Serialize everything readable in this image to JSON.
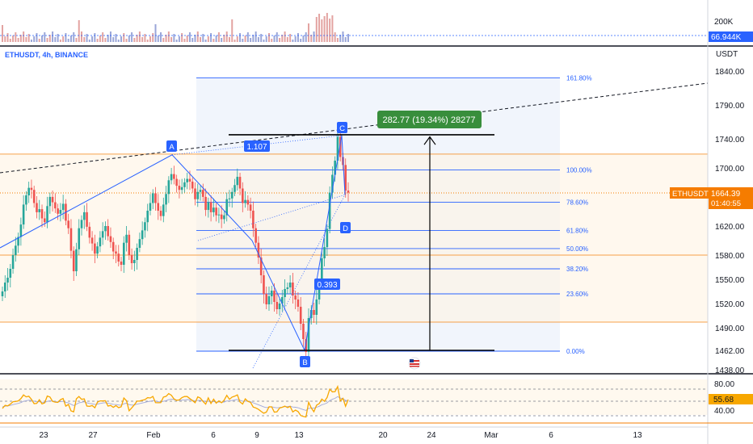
{
  "symbol_label": "ETHUSDT, 4h, BINANCE",
  "currency": "USDT",
  "ticker": "ETHUSDT",
  "last_price": "1664.39",
  "countdown": "01:40:55",
  "volume_axis": {
    "labels": [
      "200K"
    ],
    "last_volume": "66.944K"
  },
  "rsi": {
    "labels": [
      "80.00",
      "40.00"
    ],
    "last_value": "55.68",
    "upper_band": 70,
    "lower_band": 30
  },
  "measure_label": "282.77 (19.34%) 28277",
  "ratio_labels": {
    "xab": "1.107",
    "abc": "0.393"
  },
  "points": {
    "A": "A",
    "B": "B",
    "C": "C",
    "D": "D"
  },
  "colors": {
    "up": "#26a69a",
    "down": "#ef5350",
    "accent": "#2962ff",
    "price_line": "#f57c00",
    "rsi_line": "#f7a700",
    "measure_bg": "#388e3c"
  },
  "chart_data": {
    "type": "candlestick",
    "price_axis": [
      1840,
      1790,
      1740,
      1700,
      1660,
      1620,
      1580,
      1550,
      1520,
      1490,
      1462,
      1438
    ],
    "x_ticks": [
      "23",
      "27",
      "Feb",
      "6",
      "9",
      "13",
      "20",
      "24",
      "Mar",
      "6",
      "13"
    ],
    "fib_levels": [
      {
        "label": "161.80%",
        "price": 1830
      },
      {
        "label": "100.00%",
        "price": 1697
      },
      {
        "label": "78.60%",
        "price": 1651
      },
      {
        "label": "61.80%",
        "price": 1614
      },
      {
        "label": "50.00%",
        "price": 1589
      },
      {
        "label": "38.20%",
        "price": 1563
      },
      {
        "label": "23.60%",
        "price": 1532
      },
      {
        "label": "0.00%",
        "price": 1461
      }
    ],
    "horizontal_levels": [
      1719,
      1580,
      1497
    ],
    "pattern_points": {
      "A": 1718,
      "B": 1462,
      "C": 1745,
      "D": 1661
    },
    "candles_close": [
      1535,
      1546,
      1552,
      1563,
      1580,
      1593,
      1605,
      1622,
      1648,
      1660,
      1671,
      1668,
      1650,
      1638,
      1642,
      1630,
      1625,
      1646,
      1658,
      1651,
      1643,
      1636,
      1641,
      1649,
      1627,
      1617,
      1586,
      1560,
      1588,
      1617,
      1628,
      1638,
      1619,
      1604,
      1596,
      1582,
      1592,
      1604,
      1613,
      1620,
      1606,
      1598,
      1585,
      1582,
      1572,
      1568,
      1597,
      1608,
      1580,
      1570,
      1574,
      1590,
      1602,
      1614,
      1625,
      1640,
      1650,
      1663,
      1650,
      1640,
      1633,
      1648,
      1662,
      1682,
      1691,
      1684,
      1674,
      1668,
      1672,
      1679,
      1684,
      1680,
      1670,
      1655,
      1665,
      1668,
      1658,
      1641,
      1651,
      1638,
      1644,
      1634,
      1635,
      1629,
      1634,
      1655,
      1656,
      1665,
      1675,
      1687,
      1670,
      1650,
      1654,
      1648,
      1640,
      1617,
      1597,
      1577,
      1555,
      1532,
      1519,
      1529,
      1536,
      1522,
      1513,
      1520,
      1528,
      1538,
      1540,
      1546,
      1530,
      1525,
      1516,
      1495,
      1476,
      1460,
      1502,
      1512,
      1506,
      1525,
      1545,
      1576,
      1591,
      1616,
      1664,
      1690,
      1710,
      1743,
      1715,
      1704,
      1667,
      1664
    ]
  }
}
